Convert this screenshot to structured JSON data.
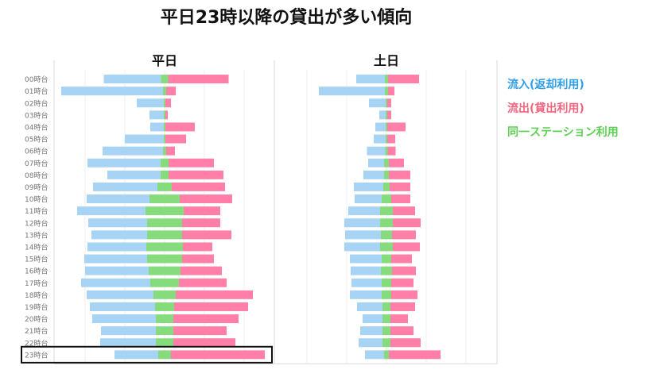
{
  "title": "平日23時以降の貸出が多い傾向",
  "colors": {
    "return": "#a7d3f5",
    "rent": "#ff7fa8",
    "same": "#86dc7c"
  },
  "legend": [
    {
      "label": "流入(返却利用)",
      "color": "#2e9ee8"
    },
    {
      "label": "流出(貸出利用)",
      "color": "#f0657d"
    },
    {
      "label": "同一ステーション利用",
      "color": "#5ccf52"
    }
  ],
  "chart_data": {
    "type": "bar",
    "orientation": "horizontal-butterfly",
    "categories": [
      "00時台",
      "01時台",
      "02時台",
      "03時台",
      "04時台",
      "05時台",
      "06時台",
      "07時台",
      "08時台",
      "09時台",
      "10時台",
      "11時台",
      "12時台",
      "13時台",
      "14時台",
      "15時台",
      "16時台",
      "17時台",
      "18時台",
      "19時台",
      "20時台",
      "21時台",
      "22時台",
      "23時台"
    ],
    "panels": [
      {
        "name": "平日",
        "series": [
          {
            "name": "流入(返却利用)",
            "values": [
              72,
              128,
              34,
              18,
              17,
              49,
              76,
              92,
              67,
              81,
              79,
              86,
              74,
              70,
              74,
              79,
              80,
              87,
              84,
              82,
              80,
              69,
              70,
              55
            ]
          },
          {
            "name": "流出(貸出利用)",
            "values": [
              76,
              12,
              7,
              3,
              37,
              26,
              11,
              57,
              69,
              67,
              66,
              46,
              48,
              62,
              37,
              40,
              52,
              60,
              97,
              93,
              82,
              67,
              78,
              118
            ]
          },
          {
            "name": "同一ステーション利用",
            "values": [
              9,
              4,
              2,
              2,
              2,
              2,
              4,
              10,
              10,
              18,
              38,
              48,
              44,
              44,
              46,
              44,
              40,
              36,
              28,
              24,
              22,
              22,
              22,
              16
            ]
          }
        ]
      },
      {
        "name": "土日",
        "series": [
          {
            "name": "流入(返却利用)",
            "values": [
              36,
              83,
              21,
              8,
              13,
              15,
              23,
              20,
              26,
              37,
              34,
              40,
              45,
              45,
              45,
              40,
              38,
              38,
              40,
              32,
              25,
              28,
              30,
              24
            ]
          },
          {
            "name": "流出(貸出利用)",
            "values": [
              39,
              8,
              5,
              5,
              23,
              10,
              10,
              19,
              27,
              26,
              24,
              28,
              35,
              30,
              34,
              26,
              30,
              28,
              33,
              31,
              22,
              29,
              38,
              65
            ]
          },
          {
            "name": "同一ステーション利用",
            "values": [
              4,
              4,
              2,
              2,
              2,
              2,
              3,
              6,
              6,
              8,
              12,
              16,
              16,
              14,
              16,
              12,
              14,
              12,
              12,
              10,
              10,
              10,
              10,
              6
            ]
          }
        ]
      }
    ],
    "highlight_category": "23時台",
    "grid": true
  }
}
